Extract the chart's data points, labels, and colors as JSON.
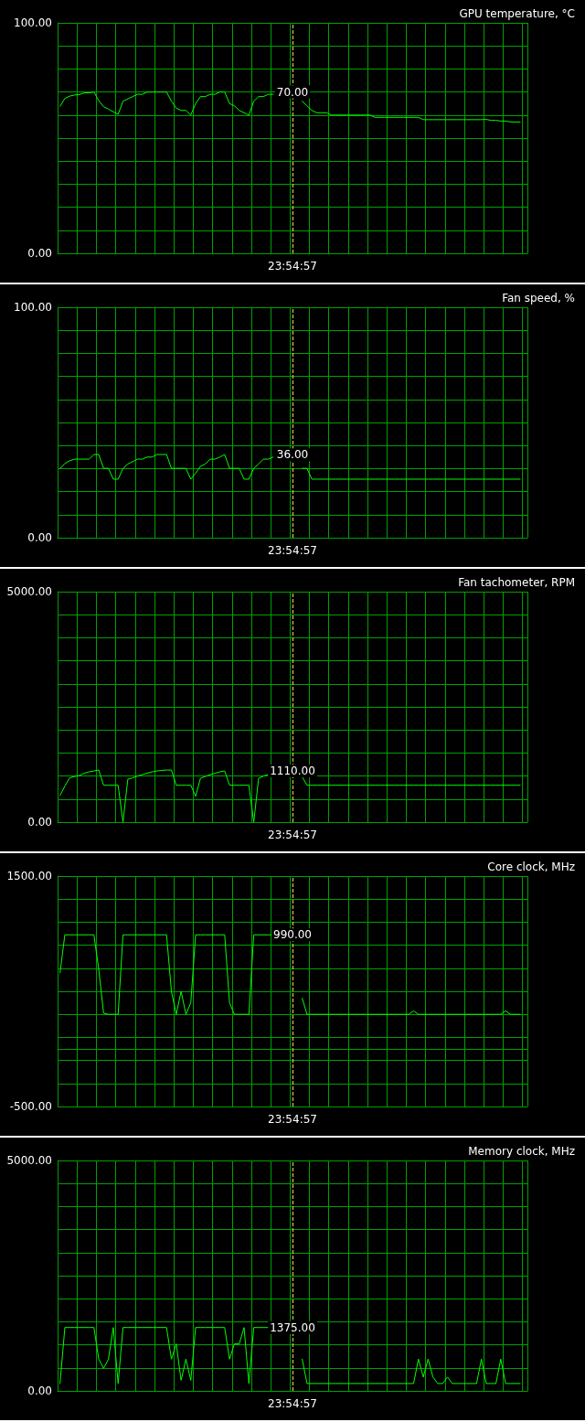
{
  "chart_data": [
    {
      "type": "line",
      "title": "GPU temperature, °C",
      "color": "#00ff00",
      "marker": "none",
      "grid": true,
      "categories": [
        null,
        null,
        null,
        null,
        null,
        null,
        null,
        null,
        null,
        null,
        null,
        null,
        null,
        null,
        null,
        null,
        null,
        null,
        null,
        null,
        null,
        null,
        null,
        null,
        null,
        null,
        null,
        null,
        null,
        null,
        null,
        null,
        null,
        null,
        null,
        null,
        null,
        null,
        null,
        null,
        null,
        null,
        null,
        null,
        null,
        null,
        null,
        null,
        "23:54:57",
        null,
        null,
        null,
        null,
        null,
        null,
        null,
        null,
        null,
        null,
        null,
        null,
        null,
        null,
        null,
        null,
        null,
        null,
        null,
        null,
        null,
        null,
        null,
        null,
        null,
        null,
        null,
        null,
        null,
        null,
        null,
        null,
        null,
        null,
        null,
        null,
        null,
        null,
        null,
        null,
        null,
        null,
        null,
        null,
        null,
        null,
        null,
        null
      ],
      "ylim": [
        0,
        100
      ],
      "yticks": [
        {
          "value": 0,
          "label": "0.00"
        },
        {
          "value": 10,
          "label": null
        },
        {
          "value": 20,
          "label": null
        },
        {
          "value": 30,
          "label": null
        },
        {
          "value": 40,
          "label": null
        },
        {
          "value": 50,
          "label": null
        },
        {
          "value": 60,
          "label": null
        },
        {
          "value": 70,
          "label": null
        },
        {
          "value": 80,
          "label": null
        },
        {
          "value": 90,
          "label": null
        },
        {
          "value": 100,
          "label": "100.00"
        }
      ],
      "ref_lines": [
        {
          "axis": "x",
          "value": "23:54:57",
          "color": "#e8d850",
          "line_style": "dashed"
        }
      ],
      "annotations": [
        {
          "text": "70.00",
          "x": "23:54:57",
          "y": 70
        }
      ],
      "values": [
        63.8,
        67.2,
        68.2,
        68.7,
        68.9,
        69.6,
        69.6,
        70,
        66.3,
        63.6,
        62.6,
        61.4,
        60.3,
        66,
        67,
        68,
        69,
        69,
        70,
        70,
        70,
        70,
        70,
        66,
        63,
        62,
        62,
        60,
        65,
        68,
        68,
        69,
        69,
        70,
        70,
        65,
        64,
        62,
        61,
        60,
        66,
        68,
        68,
        69,
        69,
        null,
        null,
        null,
        null,
        null,
        66,
        64,
        62,
        61,
        61,
        61,
        60,
        60,
        60,
        60,
        60,
        60,
        60,
        60,
        60,
        59,
        59,
        59,
        59,
        59,
        59,
        59,
        59,
        59,
        59,
        58,
        58,
        58,
        58,
        58,
        58,
        58,
        58,
        58,
        58,
        58,
        58,
        58,
        58.1,
        57.7,
        57.7,
        57.4,
        57.4,
        57,
        57,
        57,
        null
      ]
    },
    {
      "type": "line",
      "title": "Fan speed, %",
      "color": "#00ff00",
      "marker": "none",
      "grid": true,
      "categories": [
        null,
        null,
        null,
        null,
        null,
        null,
        null,
        null,
        null,
        null,
        null,
        null,
        null,
        null,
        null,
        null,
        null,
        null,
        null,
        null,
        null,
        null,
        null,
        null,
        null,
        null,
        null,
        null,
        null,
        null,
        null,
        null,
        null,
        null,
        null,
        null,
        null,
        null,
        null,
        null,
        null,
        null,
        null,
        null,
        null,
        null,
        null,
        null,
        "23:54:57",
        null,
        null,
        null,
        null,
        null,
        null,
        null,
        null,
        null,
        null,
        null,
        null,
        null,
        null,
        null,
        null,
        null,
        null,
        null,
        null,
        null,
        null,
        null,
        null,
        null,
        null,
        null,
        null,
        null,
        null,
        null,
        null,
        null,
        null,
        null,
        null,
        null,
        null,
        null,
        null,
        null,
        null,
        null,
        null,
        null,
        null,
        null,
        null
      ],
      "ylim": [
        0,
        100
      ],
      "yticks": [
        {
          "value": 0,
          "label": "0.00"
        },
        {
          "value": 10,
          "label": null
        },
        {
          "value": 20,
          "label": null
        },
        {
          "value": 30,
          "label": null
        },
        {
          "value": 40,
          "label": null
        },
        {
          "value": 50,
          "label": null
        },
        {
          "value": 60,
          "label": null
        },
        {
          "value": 70,
          "label": null
        },
        {
          "value": 80,
          "label": null
        },
        {
          "value": 90,
          "label": null
        },
        {
          "value": 100,
          "label": "100.00"
        }
      ],
      "ref_lines": [
        {
          "axis": "x",
          "value": "23:54:57",
          "color": "#e8d850",
          "line_style": "dashed"
        }
      ],
      "annotations": [
        {
          "text": "36.00",
          "x": "23:54:57",
          "y": 36
        }
      ],
      "values": [
        30,
        32.2,
        33.4,
        34.1,
        34.1,
        34.1,
        34.1,
        36.1,
        36.1,
        30.1,
        30.1,
        25.4,
        25.4,
        30.1,
        32,
        33,
        34.1,
        34.1,
        35,
        35,
        36.1,
        36.1,
        36.1,
        30.1,
        30.1,
        30.1,
        30.1,
        25.4,
        28,
        31,
        32,
        34.1,
        34.1,
        35,
        36.1,
        30.1,
        30.1,
        30.1,
        25.4,
        25.4,
        30.1,
        32,
        34.1,
        34.1,
        35,
        null,
        null,
        null,
        null,
        null,
        30.1,
        30.1,
        25.4,
        25.4,
        25.4,
        25.4,
        25.4,
        25.4,
        25.4,
        25.4,
        25.4,
        25.4,
        25.4,
        25.4,
        25.4,
        25.4,
        25.4,
        25.4,
        25.4,
        25.4,
        25.4,
        25.4,
        25.4,
        25.4,
        25.4,
        25.4,
        25.4,
        25.4,
        25.4,
        25.4,
        25.4,
        25.4,
        25.4,
        25.4,
        25.4,
        25.4,
        25.4,
        25.4,
        25.4,
        25.4,
        25.4,
        25.4,
        25.4,
        25.4,
        25.4,
        25.4,
        null
      ]
    },
    {
      "type": "line",
      "title": "Fan tachometer, RPM",
      "color": "#00ff00",
      "marker": "none",
      "grid": true,
      "categories": [
        null,
        null,
        null,
        null,
        null,
        null,
        null,
        null,
        null,
        null,
        null,
        null,
        null,
        null,
        null,
        null,
        null,
        null,
        null,
        null,
        null,
        null,
        null,
        null,
        null,
        null,
        null,
        null,
        null,
        null,
        null,
        null,
        null,
        null,
        null,
        null,
        null,
        null,
        null,
        null,
        null,
        null,
        null,
        null,
        null,
        null,
        null,
        null,
        "23:54:57",
        null,
        null,
        null,
        null,
        null,
        null,
        null,
        null,
        null,
        null,
        null,
        null,
        null,
        null,
        null,
        null,
        null,
        null,
        null,
        null,
        null,
        null,
        null,
        null,
        null,
        null,
        null,
        null,
        null,
        null,
        null,
        null,
        null,
        null,
        null,
        null,
        null,
        null,
        null,
        null,
        null,
        null,
        null,
        null,
        null,
        null,
        null,
        null
      ],
      "ylim": [
        0,
        5000
      ],
      "yticks": [
        {
          "value": 0,
          "label": "0.00"
        },
        {
          "value": 500,
          "label": null
        },
        {
          "value": 1000,
          "label": null
        },
        {
          "value": 1500,
          "label": null
        },
        {
          "value": 2000,
          "label": null
        },
        {
          "value": 2500,
          "label": null
        },
        {
          "value": 3000,
          "label": null
        },
        {
          "value": 3500,
          "label": null
        },
        {
          "value": 4000,
          "label": null
        },
        {
          "value": 4500,
          "label": null
        },
        {
          "value": 5000,
          "label": "5000.00"
        }
      ],
      "ref_lines": [
        {
          "axis": "x",
          "value": "23:54:57",
          "color": "#e8d850",
          "line_style": "dashed"
        }
      ],
      "annotations": [
        {
          "text": "1110.00",
          "x": "23:54:57",
          "y": 1110
        }
      ],
      "values": [
        580,
        780,
        960,
        990,
        1010,
        1060,
        1090,
        1110,
        1130,
        800,
        800,
        800,
        800,
        0,
        930,
        960,
        1000,
        1030,
        1060,
        1090,
        1110,
        1120,
        1130,
        1130,
        800,
        800,
        800,
        800,
        560,
        950,
        990,
        1030,
        1060,
        1090,
        1110,
        800,
        800,
        800,
        800,
        800,
        0,
        950,
        1000,
        1030,
        null,
        null,
        null,
        null,
        null,
        null,
        980,
        800,
        800,
        800,
        800,
        800,
        800,
        800,
        800,
        800,
        800,
        800,
        800,
        800,
        800,
        800,
        800,
        800,
        800,
        800,
        800,
        800,
        800,
        800,
        800,
        800,
        800,
        800,
        800,
        800,
        800,
        800,
        800,
        800,
        800,
        800,
        800,
        800,
        800,
        800,
        800,
        800,
        800,
        800,
        800,
        800,
        null
      ]
    },
    {
      "type": "line",
      "title": "Core clock, MHz",
      "color": "#00ff00",
      "marker": "none",
      "grid": true,
      "categories": [
        null,
        null,
        null,
        null,
        null,
        null,
        null,
        null,
        null,
        null,
        null,
        null,
        null,
        null,
        null,
        null,
        null,
        null,
        null,
        null,
        null,
        null,
        null,
        null,
        null,
        null,
        null,
        null,
        null,
        null,
        null,
        null,
        null,
        null,
        null,
        null,
        null,
        null,
        null,
        null,
        null,
        null,
        null,
        null,
        null,
        null,
        null,
        null,
        "23:54:57",
        null,
        null,
        null,
        null,
        null,
        null,
        null,
        null,
        null,
        null,
        null,
        null,
        null,
        null,
        null,
        null,
        null,
        null,
        null,
        null,
        null,
        null,
        null,
        null,
        null,
        null,
        null,
        null,
        null,
        null,
        null,
        null,
        null,
        null,
        null,
        null,
        null,
        null,
        null,
        null,
        null,
        null,
        null,
        null,
        null,
        null,
        null,
        null
      ],
      "ylim": [
        -500,
        1500
      ],
      "yticks": [
        {
          "value": -500,
          "label": "-500.00"
        },
        {
          "value": -300,
          "label": null
        },
        {
          "value": -100,
          "label": null
        },
        {
          "value": 100,
          "label": null
        },
        {
          "value": 300,
          "label": null
        },
        {
          "value": 500,
          "label": null
        },
        {
          "value": 700,
          "label": null
        },
        {
          "value": 900,
          "label": null
        },
        {
          "value": 1100,
          "label": null
        },
        {
          "value": 1300,
          "label": null
        },
        {
          "value": 1500,
          "label": "1500.00"
        }
      ],
      "ref_lines": [
        {
          "axis": "x",
          "value": "23:54:57",
          "color": "#e8d850",
          "line_style": "dashed"
        }
      ],
      "annotations": [
        {
          "text": "990.00",
          "x": "23:54:57",
          "y": 990
        }
      ],
      "values": [
        660,
        990,
        990,
        990,
        990,
        990,
        990,
        990,
        690,
        310,
        300,
        300,
        300,
        990,
        990,
        990,
        990,
        990,
        990,
        990,
        990,
        990,
        990,
        500,
        300,
        500,
        300,
        400,
        990,
        990,
        990,
        990,
        990,
        990,
        990,
        400,
        300,
        300,
        300,
        300,
        990,
        990,
        990,
        990,
        990,
        null,
        null,
        null,
        null,
        null,
        440,
        300,
        300,
        300,
        300,
        300,
        300,
        300,
        300,
        300,
        300,
        300,
        300,
        300,
        300,
        300,
        300,
        300,
        300,
        300,
        300,
        300,
        300,
        330,
        300,
        300,
        300,
        300,
        300,
        300,
        300,
        300,
        300,
        300,
        300,
        300,
        300,
        300,
        300,
        300,
        300,
        300,
        330,
        300,
        300,
        300,
        null
      ]
    },
    {
      "type": "line",
      "title": "Memory clock, MHz",
      "color": "#00ff00",
      "marker": "none",
      "grid": true,
      "categories": [
        null,
        null,
        null,
        null,
        null,
        null,
        null,
        null,
        null,
        null,
        null,
        null,
        null,
        null,
        null,
        null,
        null,
        null,
        null,
        null,
        null,
        null,
        null,
        null,
        null,
        null,
        null,
        null,
        null,
        null,
        null,
        null,
        null,
        null,
        null,
        null,
        null,
        null,
        null,
        null,
        null,
        null,
        null,
        null,
        null,
        null,
        null,
        null,
        "23:54:57",
        null,
        null,
        null,
        null,
        null,
        null,
        null,
        null,
        null,
        null,
        null,
        null,
        null,
        null,
        null,
        null,
        null,
        null,
        null,
        null,
        null,
        null,
        null,
        null,
        null,
        null,
        null,
        null,
        null,
        null,
        null,
        null,
        null,
        null,
        null,
        null,
        null,
        null,
        null,
        null,
        null,
        null,
        null,
        null,
        null,
        null,
        null,
        null
      ],
      "ylim": [
        0,
        5000
      ],
      "yticks": [
        {
          "value": 0,
          "label": "0.00"
        },
        {
          "value": 500,
          "label": null
        },
        {
          "value": 1000,
          "label": null
        },
        {
          "value": 1500,
          "label": null
        },
        {
          "value": 2000,
          "label": null
        },
        {
          "value": 2500,
          "label": null
        },
        {
          "value": 3000,
          "label": null
        },
        {
          "value": 3500,
          "label": null
        },
        {
          "value": 4000,
          "label": null
        },
        {
          "value": 4500,
          "label": null
        },
        {
          "value": 5000,
          "label": "5000.00"
        }
      ],
      "ref_lines": [
        {
          "axis": "x",
          "value": "23:54:57",
          "color": "#e8d850",
          "line_style": "dashed"
        }
      ],
      "annotations": [
        {
          "text": "1375.00",
          "x": "23:54:57",
          "y": 1375
        }
      ],
      "values": [
        160,
        1375,
        1375,
        1375,
        1375,
        1375,
        1375,
        1375,
        690,
        490,
        690,
        1375,
        160,
        1375,
        1375,
        1375,
        1375,
        1375,
        1375,
        1375,
        1375,
        1375,
        1375,
        690,
        1020,
        230,
        690,
        230,
        1375,
        1375,
        1375,
        1375,
        1375,
        1375,
        1375,
        690,
        1020,
        1020,
        1375,
        160,
        1375,
        1375,
        1375,
        1375,
        null,
        null,
        null,
        null,
        null,
        null,
        690,
        160,
        160,
        160,
        160,
        160,
        160,
        160,
        160,
        160,
        160,
        160,
        160,
        160,
        160,
        160,
        160,
        160,
        160,
        160,
        160,
        160,
        160,
        160,
        690,
        300,
        690,
        300,
        160,
        160,
        300,
        160,
        160,
        160,
        160,
        160,
        160,
        690,
        160,
        160,
        160,
        690,
        160,
        160,
        160,
        160,
        null
      ]
    }
  ]
}
